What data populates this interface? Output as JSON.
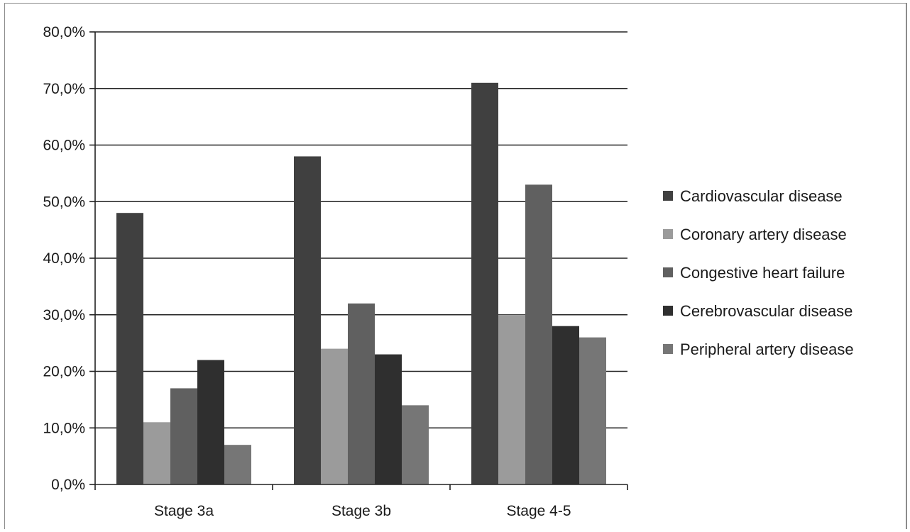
{
  "chart_data": {
    "type": "bar",
    "title": "",
    "xlabel": "",
    "ylabel": "",
    "categories": [
      "Stage 3a",
      "Stage 3b",
      "Stage 4-5"
    ],
    "ylim": [
      0,
      80
    ],
    "yticks": [
      0,
      10,
      20,
      30,
      40,
      50,
      60,
      70,
      80
    ],
    "ytick_labels": [
      "0,0%",
      "10,0%",
      "20,0%",
      "30,0%",
      "40,0%",
      "50,0%",
      "60,0%",
      "70,0%",
      "80,0%"
    ],
    "grid": true,
    "legend_position": "right",
    "series": [
      {
        "name": "Cardiovascular disease",
        "values": [
          48,
          58,
          71
        ],
        "color": "#404040"
      },
      {
        "name": "Coronary artery disease",
        "values": [
          11,
          24,
          30
        ],
        "color": "#9b9b9b"
      },
      {
        "name": "Congestive heart failure",
        "values": [
          17,
          32,
          53
        ],
        "color": "#606060"
      },
      {
        "name": "Cerebrovascular disease",
        "values": [
          22,
          23,
          28
        ],
        "color": "#2f2f2f"
      },
      {
        "name": "Peripheral artery disease",
        "values": [
          7,
          14,
          26
        ],
        "color": "#767676"
      }
    ]
  }
}
